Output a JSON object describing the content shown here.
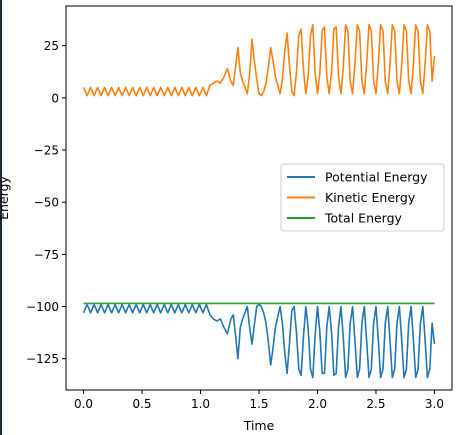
{
  "chart_data": {
    "type": "line",
    "title": "",
    "xlabel": "Time",
    "ylabel": "Energy",
    "xlim": [
      -0.15,
      3.15
    ],
    "ylim": [
      -140,
      44
    ],
    "xticks": [
      0.0,
      0.5,
      1.0,
      1.5,
      2.0,
      2.5,
      3.0
    ],
    "xtick_labels": [
      "0.0",
      "0.5",
      "1.0",
      "1.5",
      "2.0",
      "2.5",
      "3.0"
    ],
    "yticks": [
      25,
      0,
      -25,
      -50,
      -75,
      -100,
      -125
    ],
    "ytick_labels": [
      "25",
      "0",
      "−25",
      "−50",
      "−75",
      "−100",
      "−125"
    ],
    "grid": false,
    "legend_position": "center-right",
    "series": [
      {
        "name": "Potential Energy",
        "color": "#1f77b4",
        "x": [
          0.0,
          0.03,
          0.06,
          0.09,
          0.12,
          0.15,
          0.18,
          0.21,
          0.24,
          0.27,
          0.3,
          0.33,
          0.36,
          0.39,
          0.42,
          0.45,
          0.48,
          0.51,
          0.54,
          0.57,
          0.6,
          0.63,
          0.66,
          0.69,
          0.72,
          0.75,
          0.78,
          0.81,
          0.84,
          0.87,
          0.9,
          0.93,
          0.96,
          0.99,
          1.02,
          1.05,
          1.08,
          1.11,
          1.14,
          1.17,
          1.2,
          1.23,
          1.26,
          1.28,
          1.3,
          1.32,
          1.34,
          1.36,
          1.38,
          1.4,
          1.42,
          1.44,
          1.46,
          1.48,
          1.5,
          1.52,
          1.54,
          1.56,
          1.58,
          1.6,
          1.62,
          1.64,
          1.66,
          1.68,
          1.7,
          1.72,
          1.74,
          1.76,
          1.78,
          1.8,
          1.82,
          1.84,
          1.86,
          1.88,
          1.9,
          1.92,
          1.94,
          1.96,
          1.98,
          2.0,
          2.02,
          2.04,
          2.06,
          2.08,
          2.1,
          2.12,
          2.14,
          2.16,
          2.18,
          2.2,
          2.22,
          2.24,
          2.26,
          2.28,
          2.3,
          2.32,
          2.34,
          2.36,
          2.38,
          2.4,
          2.42,
          2.44,
          2.46,
          2.48,
          2.5,
          2.52,
          2.54,
          2.56,
          2.58,
          2.6,
          2.62,
          2.64,
          2.66,
          2.68,
          2.7,
          2.72,
          2.74,
          2.76,
          2.78,
          2.8,
          2.82,
          2.84,
          2.86,
          2.88,
          2.9,
          2.92,
          2.94,
          2.96,
          2.98,
          3.0
        ],
        "y": [
          -103,
          -99,
          -103,
          -99,
          -103,
          -99,
          -103,
          -99,
          -103,
          -99,
          -103,
          -99,
          -103,
          -99,
          -103,
          -99,
          -103,
          -99,
          -103,
          -99,
          -103,
          -99,
          -103,
          -99,
          -103,
          -99,
          -103,
          -99,
          -103,
          -99,
          -103,
          -99,
          -103,
          -99,
          -103,
          -99,
          -104,
          -106,
          -107,
          -106,
          -110,
          -113,
          -106,
          -104,
          -114,
          -125,
          -110,
          -106,
          -103,
          -100,
          -110,
          -118,
          -109,
          -100,
          -99,
          -100,
          -103,
          -108,
          -117,
          -128,
          -120,
          -110,
          -105,
          -100,
          -108,
          -122,
          -132,
          -118,
          -102,
          -100,
          -112,
          -130,
          -133,
          -115,
          -100,
          -110,
          -130,
          -134,
          -114,
          -100,
          -112,
          -132,
          -132,
          -110,
          -100,
          -112,
          -133,
          -132,
          -110,
          -100,
          -114,
          -134,
          -130,
          -108,
          -100,
          -116,
          -134,
          -130,
          -108,
          -100,
          -116,
          -134,
          -130,
          -108,
          -100,
          -116,
          -134,
          -130,
          -108,
          -100,
          -116,
          -134,
          -130,
          -108,
          -100,
          -116,
          -134,
          -130,
          -108,
          -100,
          -116,
          -134,
          -130,
          -108,
          -100,
          -116,
          -134,
          -130,
          -108,
          -118
        ]
      },
      {
        "name": "Kinetic Energy",
        "color": "#ff7f0e",
        "x": [
          0.0,
          0.03,
          0.06,
          0.09,
          0.12,
          0.15,
          0.18,
          0.21,
          0.24,
          0.27,
          0.3,
          0.33,
          0.36,
          0.39,
          0.42,
          0.45,
          0.48,
          0.51,
          0.54,
          0.57,
          0.6,
          0.63,
          0.66,
          0.69,
          0.72,
          0.75,
          0.78,
          0.81,
          0.84,
          0.87,
          0.9,
          0.93,
          0.96,
          0.99,
          1.02,
          1.05,
          1.08,
          1.11,
          1.14,
          1.17,
          1.2,
          1.23,
          1.26,
          1.28,
          1.3,
          1.32,
          1.34,
          1.36,
          1.38,
          1.4,
          1.42,
          1.44,
          1.46,
          1.48,
          1.5,
          1.52,
          1.54,
          1.56,
          1.58,
          1.6,
          1.62,
          1.64,
          1.66,
          1.68,
          1.7,
          1.72,
          1.74,
          1.76,
          1.78,
          1.8,
          1.82,
          1.84,
          1.86,
          1.88,
          1.9,
          1.92,
          1.94,
          1.96,
          1.98,
          2.0,
          2.02,
          2.04,
          2.06,
          2.08,
          2.1,
          2.12,
          2.14,
          2.16,
          2.18,
          2.2,
          2.22,
          2.24,
          2.26,
          2.28,
          2.3,
          2.32,
          2.34,
          2.36,
          2.38,
          2.4,
          2.42,
          2.44,
          2.46,
          2.48,
          2.5,
          2.52,
          2.54,
          2.56,
          2.58,
          2.6,
          2.62,
          2.64,
          2.66,
          2.68,
          2.7,
          2.72,
          2.74,
          2.76,
          2.78,
          2.8,
          2.82,
          2.84,
          2.86,
          2.88,
          2.9,
          2.92,
          2.94,
          2.96,
          2.98,
          3.0
        ],
        "y": [
          5,
          1,
          5,
          1,
          5,
          1,
          5,
          1,
          5,
          1,
          5,
          1,
          5,
          1,
          5,
          1,
          5,
          1,
          5,
          1,
          5,
          1,
          5,
          1,
          5,
          1,
          5,
          1,
          5,
          1,
          5,
          1,
          5,
          1,
          5,
          1,
          6,
          7,
          8,
          7,
          10,
          14,
          8,
          6,
          15,
          24,
          12,
          8,
          5,
          2,
          11,
          28,
          18,
          9,
          2,
          1,
          3,
          7,
          15,
          24,
          18,
          10,
          6,
          2,
          9,
          22,
          31,
          16,
          3,
          1,
          12,
          30,
          33,
          14,
          2,
          10,
          30,
          35,
          12,
          2,
          12,
          32,
          34,
          10,
          2,
          12,
          33,
          34,
          10,
          2,
          14,
          35,
          32,
          8,
          2,
          16,
          35,
          32,
          8,
          2,
          16,
          35,
          32,
          8,
          2,
          16,
          35,
          32,
          8,
          2,
          16,
          35,
          32,
          8,
          2,
          16,
          35,
          32,
          8,
          2,
          16,
          35,
          32,
          8,
          2,
          16,
          35,
          32,
          8,
          20
        ]
      },
      {
        "name": "Total Energy",
        "color": "#2ca02c",
        "x": [
          0.0,
          3.0
        ],
        "y": [
          -98.5,
          -98.5
        ]
      }
    ]
  }
}
